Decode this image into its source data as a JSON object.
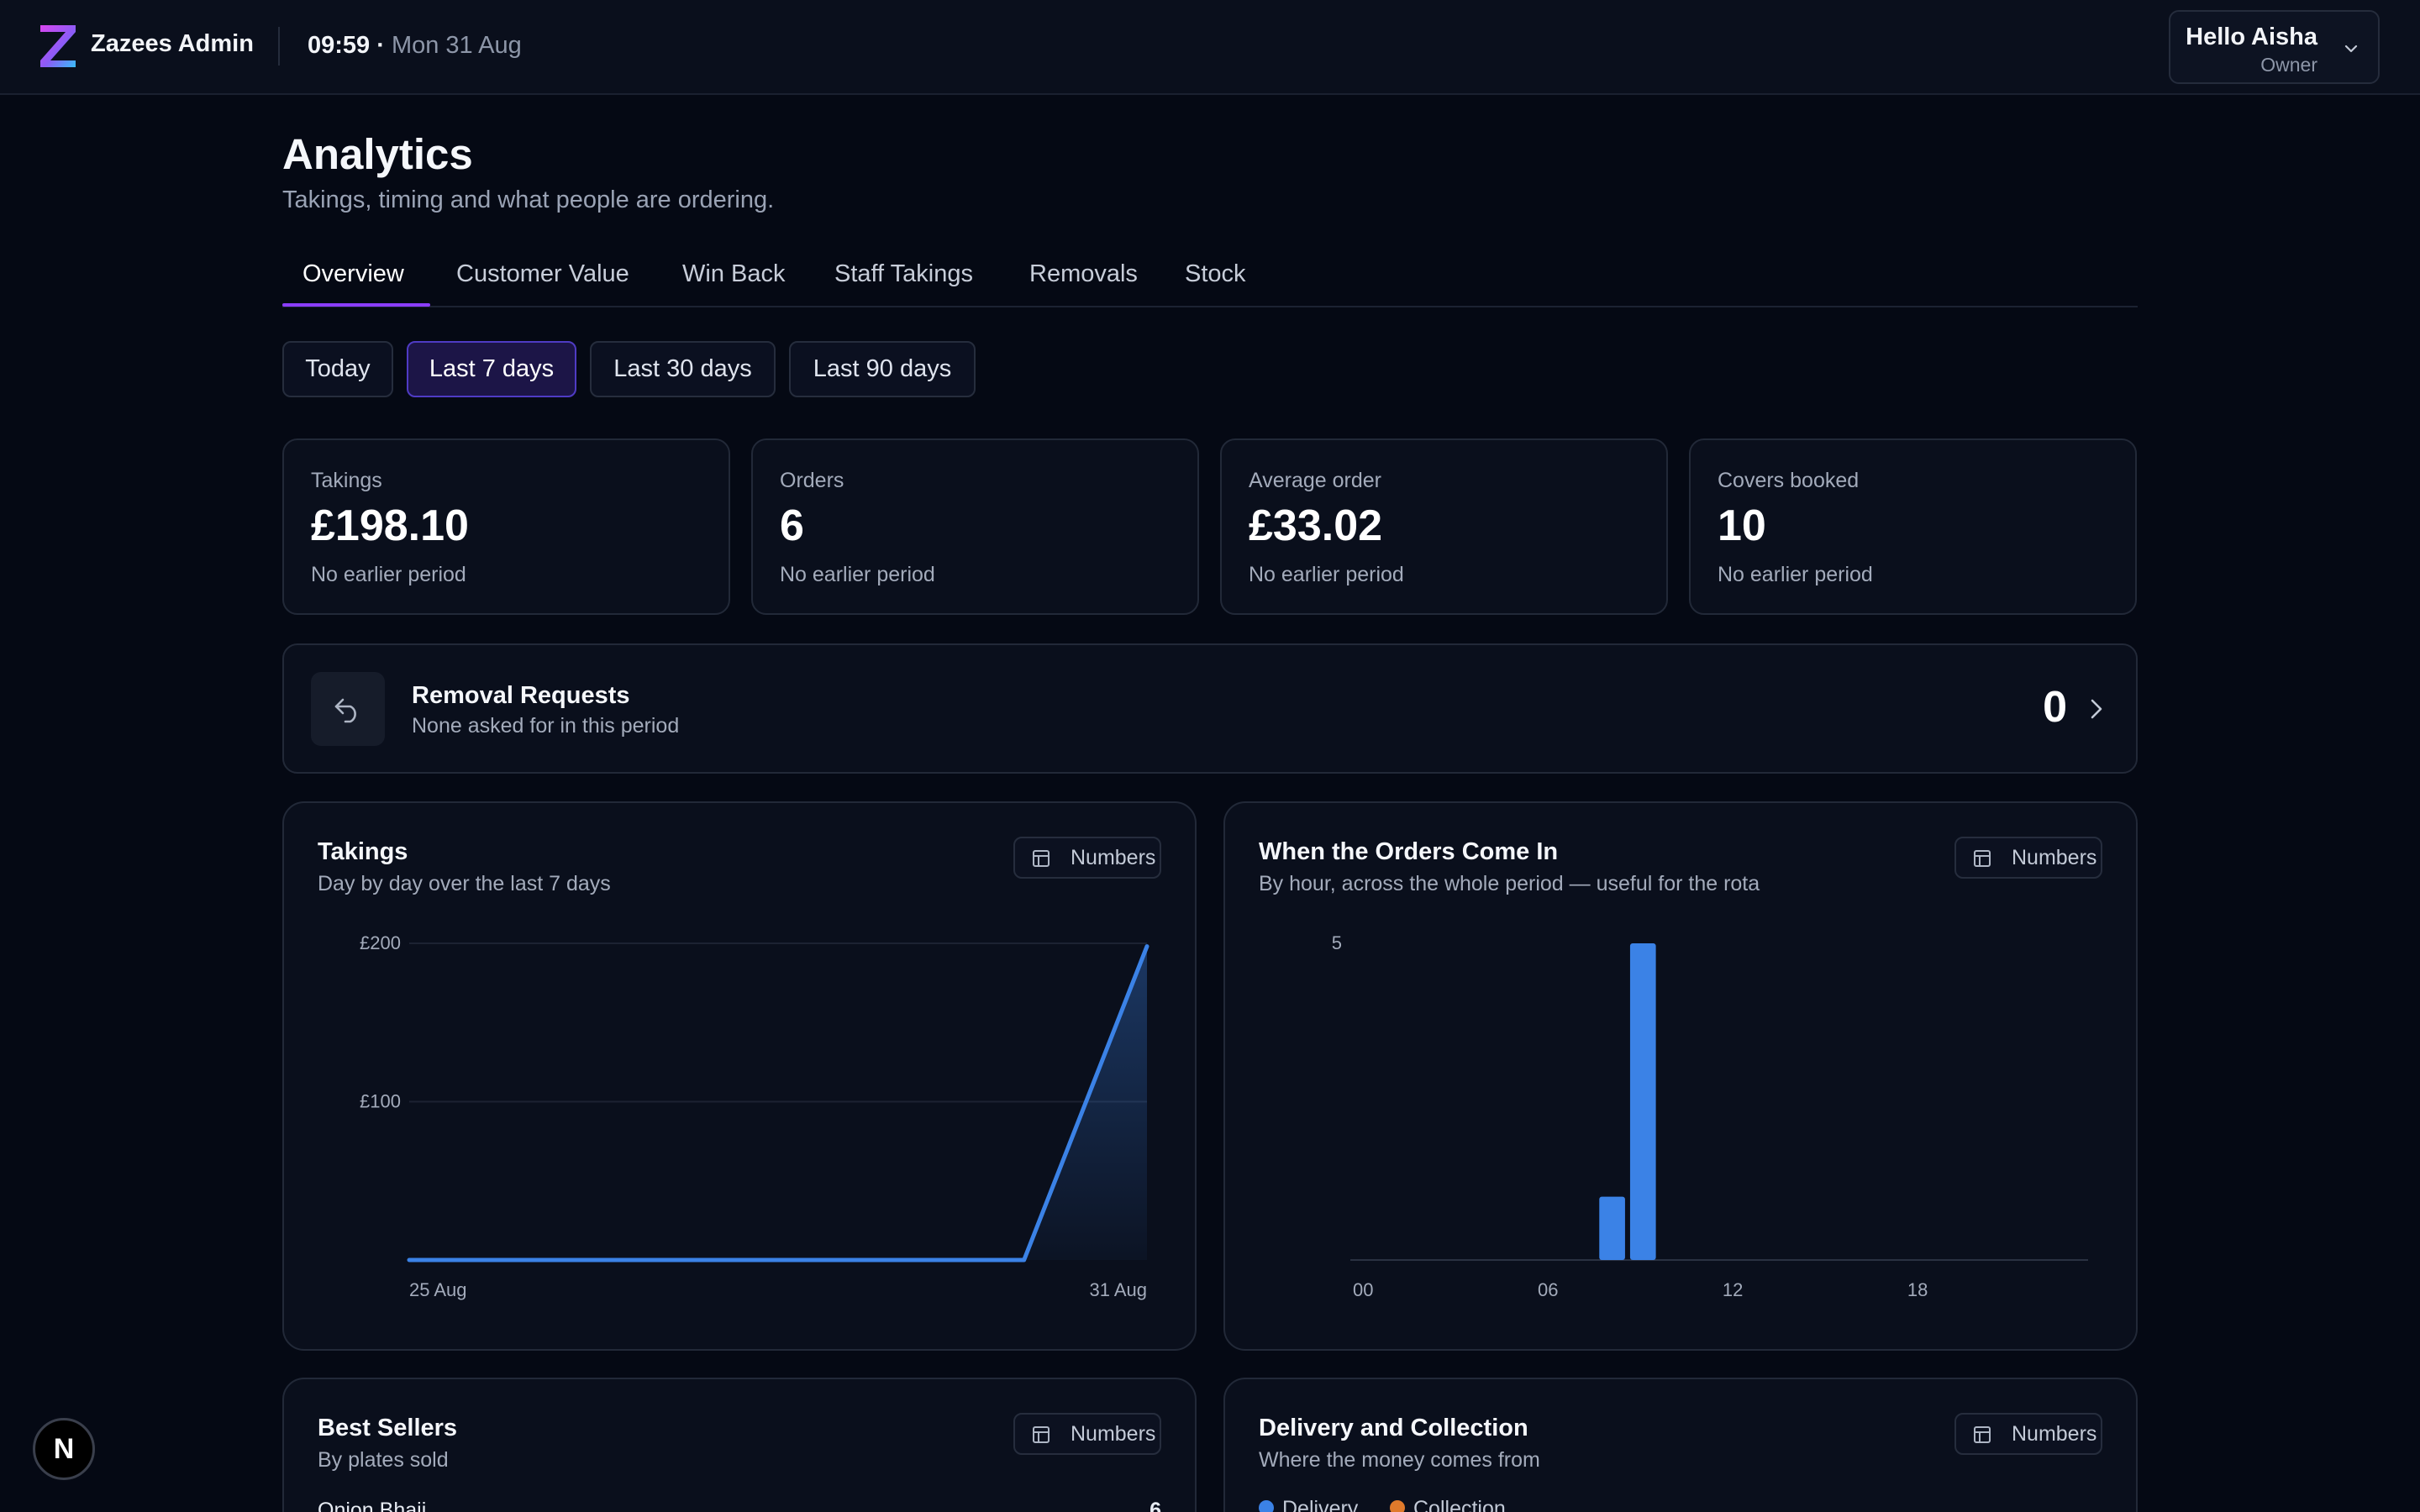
{
  "app": {
    "name": "Zazees Admin",
    "time": "09:59",
    "date": "Mon 31 Aug"
  },
  "user": {
    "greeting": "Hello Aisha",
    "role": "Owner"
  },
  "page": {
    "title": "Analytics",
    "subtitle": "Takings, timing and what people are ordering."
  },
  "tabs": [
    {
      "label": "Overview",
      "active": true
    },
    {
      "label": "Customer Value"
    },
    {
      "label": "Win Back"
    },
    {
      "label": "Staff Takings"
    },
    {
      "label": "Removals"
    },
    {
      "label": "Stock"
    }
  ],
  "ranges": [
    {
      "label": "Today"
    },
    {
      "label": "Last 7 days",
      "active": true
    },
    {
      "label": "Last 30 days"
    },
    {
      "label": "Last 90 days"
    }
  ],
  "stats": [
    {
      "label": "Takings",
      "value": "£198.10",
      "note": "No earlier period"
    },
    {
      "label": "Orders",
      "value": "6",
      "note": "No earlier period"
    },
    {
      "label": "Average order",
      "value": "£33.02",
      "note": "No earlier period"
    },
    {
      "label": "Covers booked",
      "value": "10",
      "note": "No earlier period"
    }
  ],
  "removal": {
    "title": "Removal Requests",
    "subtitle": "None asked for in this period",
    "count": "0"
  },
  "panels": {
    "takings": {
      "title": "Takings",
      "subtitle": "Day by day over the last 7 days",
      "button": "Numbers"
    },
    "orders_by_hour": {
      "title": "When the Orders Come In",
      "subtitle": "By hour, across the whole period — useful for the rota",
      "button": "Numbers"
    },
    "best_sellers": {
      "title": "Best Sellers",
      "subtitle": "By plates sold",
      "button": "Numbers",
      "items": [
        {
          "name": "Onion Bhaji",
          "count": "6"
        }
      ]
    },
    "delivery": {
      "title": "Delivery and Collection",
      "subtitle": "Where the money comes from",
      "button": "Numbers",
      "legend": [
        "Delivery",
        "Collection"
      ]
    }
  },
  "colors": {
    "accent": "#8b3dff",
    "series": "#3b82e6",
    "collection": "#e07a2b",
    "background": "#050914"
  },
  "floating_badge": "N",
  "chart_data": [
    {
      "type": "area",
      "title": "Takings",
      "x": [
        "25 Aug",
        "26 Aug",
        "27 Aug",
        "28 Aug",
        "29 Aug",
        "30 Aug",
        "31 Aug"
      ],
      "values": [
        0,
        0,
        0,
        0,
        0,
        0,
        198.1
      ],
      "x_tick_labels": [
        "25 Aug",
        "31 Aug"
      ],
      "y_tick_labels": [
        "£100",
        "£200"
      ],
      "ylim": [
        0,
        200
      ],
      "grid": true
    },
    {
      "type": "bar",
      "title": "When the Orders Come In",
      "x": [
        0,
        1,
        2,
        3,
        4,
        5,
        6,
        7,
        8,
        9,
        10,
        11,
        12,
        13,
        14,
        15,
        16,
        17,
        18,
        19,
        20,
        21,
        22,
        23
      ],
      "values": [
        0,
        0,
        0,
        0,
        0,
        0,
        0,
        0,
        1,
        5,
        0,
        0,
        0,
        0,
        0,
        0,
        0,
        0,
        0,
        0,
        0,
        0,
        0,
        0
      ],
      "x_tick_labels": [
        "00",
        "06",
        "12",
        "18"
      ],
      "y_tick_labels": [
        "5"
      ],
      "ylim": [
        0,
        5
      ],
      "grid": false
    }
  ]
}
